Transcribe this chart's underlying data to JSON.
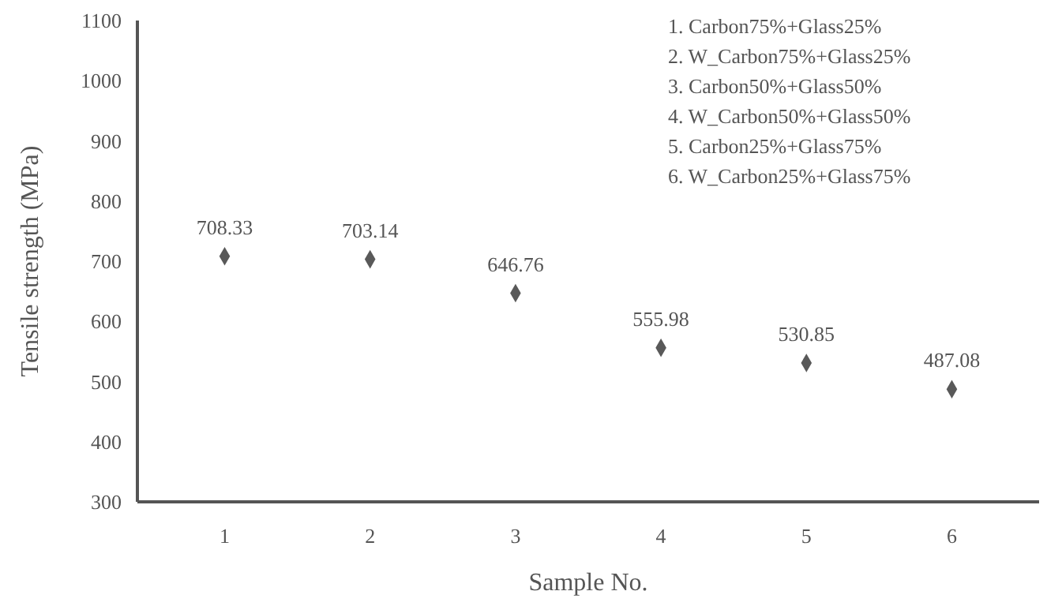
{
  "chart_data": {
    "type": "scatter",
    "xlabel": "Sample No.",
    "ylabel": "Tensile strength (MPa)",
    "categories": [
      "1",
      "2",
      "3",
      "4",
      "5",
      "6"
    ],
    "series": [
      {
        "color": "#595959",
        "values": [
          708.33,
          703.14,
          646.76,
          555.98,
          530.85,
          487.08
        ]
      }
    ],
    "ylim": [
      300,
      1100
    ],
    "yticks": [
      300,
      400,
      500,
      600,
      700,
      800,
      900,
      1000,
      1100
    ],
    "marker": "diamond",
    "data_labels": true,
    "grid": false,
    "annotations": [
      "1. Carbon75%+Glass25%",
      "2. W_Carbon75%+Glass25%",
      "3. Carbon50%+Glass50%",
      "4. W_Carbon50%+Glass50%",
      "5. Carbon25%+Glass75%",
      "6. W_Carbon25%+Glass75%"
    ]
  }
}
